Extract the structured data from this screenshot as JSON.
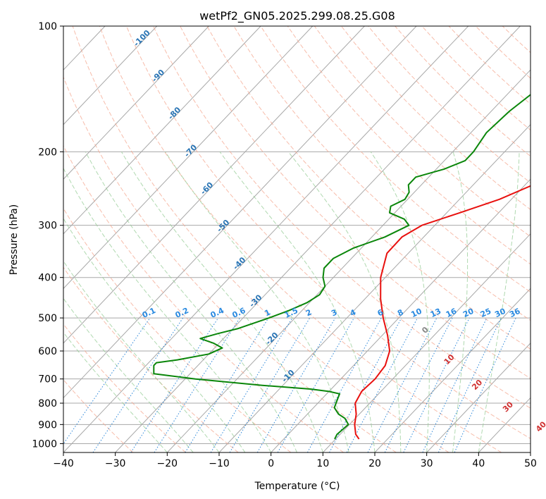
{
  "chart_data": {
    "type": "line",
    "title": "wetPf2_GN05.2025.299.08.25.G08",
    "xlabel": "Temperature (°C)",
    "ylabel": "Pressure (hPa)",
    "xlim": [
      -40,
      50
    ],
    "ylim": [
      1050,
      100
    ],
    "yscale": "log",
    "xticks": [
      -40,
      -30,
      -20,
      -10,
      0,
      10,
      20,
      30,
      40,
      50
    ],
    "yticks": [
      100,
      200,
      300,
      400,
      500,
      600,
      700,
      800,
      900,
      1000
    ],
    "grid": true,
    "colors": {
      "temperature": "#e8100e",
      "dewpoint": "#0a860a",
      "isotherm": "#a8a8a8",
      "dry_adiabat": "#f4a78f",
      "moist_adiabat": "#96cc96",
      "mixing_ratio": "#2b86d8",
      "temp_label": "#2a75b5",
      "mix_label": "#2a8ae0",
      "theta_label": "#d03030",
      "gray_label": "#888888"
    },
    "series": [
      {
        "name": "Temperature",
        "pressure": [
          975,
          950,
          900,
          850,
          800,
          750,
          700,
          650,
          600,
          550,
          500,
          450,
          400,
          350,
          320,
          300,
          280,
          260,
          240,
          220,
          200,
          180,
          160,
          140,
          120,
          100
        ],
        "values": [
          14.5,
          13.0,
          11.0,
          9.4,
          7.2,
          6.3,
          6.6,
          6.1,
          4.3,
          1.0,
          -3.0,
          -7.0,
          -10.9,
          -14.1,
          -14.2,
          -12.5,
          -7.5,
          -2.3,
          1.5,
          3.0,
          5.2,
          8.0,
          10.8,
          12.8,
          16.0,
          19.8
        ]
      },
      {
        "name": "Dewpoint",
        "pressure": [
          975,
          950,
          900,
          870,
          850,
          820,
          780,
          760,
          750,
          740,
          725,
          700,
          680,
          650,
          640,
          630,
          610,
          590,
          575,
          560,
          545,
          530,
          500,
          480,
          460,
          440,
          420,
          400,
          380,
          360,
          340,
          320,
          300,
          290,
          280,
          270,
          260,
          250,
          240,
          230,
          220,
          210,
          200,
          180,
          160,
          140,
          120,
          100
        ],
        "values": [
          9.8,
          9.4,
          9.8,
          8.0,
          6.0,
          4.0,
          3.0,
          2.5,
          0.0,
          -4.0,
          -14.0,
          -28.0,
          -37.0,
          -38.5,
          -38.5,
          -35.0,
          -30.0,
          -28.5,
          -31.0,
          -34.5,
          -32.0,
          -29.0,
          -25.0,
          -22.5,
          -20.5,
          -19.5,
          -20.0,
          -22.0,
          -23.5,
          -23.5,
          -21.5,
          -17.5,
          -15.0,
          -17.0,
          -21.0,
          -22.0,
          -20.5,
          -21.0,
          -22.5,
          -22.5,
          -18.5,
          -16.0,
          -16.0,
          -17.0,
          -16.5,
          -15.0,
          -11.5,
          -3.0
        ]
      }
    ],
    "isotherm_labels": [
      {
        "text": "-100",
        "t": -100
      },
      {
        "text": "-90",
        "t": -90
      },
      {
        "text": "-80",
        "t": -80
      },
      {
        "text": "-70",
        "t": -70
      },
      {
        "text": "-60",
        "t": -60
      },
      {
        "text": "-50",
        "t": -50
      },
      {
        "text": "-40",
        "t": -40
      },
      {
        "text": "-30",
        "t": -30
      },
      {
        "text": "-20",
        "t": -20
      },
      {
        "text": "-10",
        "t": -10
      }
    ],
    "mixing_ratio_labels": [
      "0.1",
      "0.2",
      "0.4",
      "0.6",
      "1",
      "1.5",
      "2",
      "3",
      "4",
      "6",
      "8",
      "10",
      "13",
      "16",
      "20",
      "25",
      "30",
      "36"
    ],
    "theta_labels": [
      {
        "text": "0",
        "t": 0
      },
      {
        "text": "10",
        "t": 10
      },
      {
        "text": "20",
        "t": 20
      },
      {
        "text": "30",
        "t": 30
      },
      {
        "text": "40",
        "t": 40
      }
    ]
  }
}
